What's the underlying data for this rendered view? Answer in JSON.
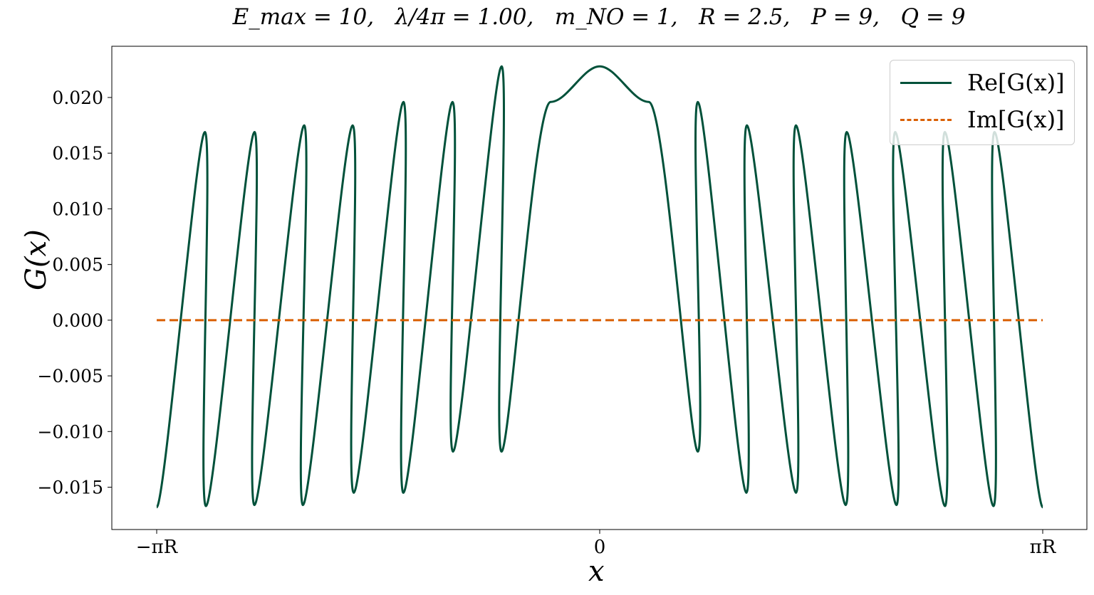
{
  "chart_data": {
    "type": "line",
    "title": "E_max = 10,   λ/4π = 1.00,   m_NO = 1,   R = 2.5,   P = 9,   Q = 9",
    "xlabel": "x",
    "ylabel": "G(x)",
    "xlim": [
      -7.854,
      7.854
    ],
    "ylim": [
      -0.0188,
      0.0246
    ],
    "x_ticks": [
      {
        "value": -7.854,
        "label": "−πR"
      },
      {
        "value": 0,
        "label": "0"
      },
      {
        "value": 7.854,
        "label": "πR"
      }
    ],
    "y_ticks": [
      {
        "value": 0.02,
        "label": "0.020"
      },
      {
        "value": 0.015,
        "label": "0.015"
      },
      {
        "value": 0.01,
        "label": "0.010"
      },
      {
        "value": 0.005,
        "label": "0.005"
      },
      {
        "value": 0.0,
        "label": "0.000"
      },
      {
        "value": -0.005,
        "label": "−0.005"
      },
      {
        "value": -0.01,
        "label": "−0.010"
      },
      {
        "value": -0.015,
        "label": "−0.015"
      }
    ],
    "grid": false,
    "legend_position": "top-right",
    "series": [
      {
        "name": "Re[G(x)]",
        "color": "#00513a",
        "style": "solid",
        "x": [
          -7.854,
          -7.0,
          -6.98,
          -6.12,
          -6.12,
          -5.24,
          -5.26,
          -4.38,
          -4.36,
          -3.48,
          -3.48,
          -2.61,
          -2.6,
          -1.74,
          -1.74,
          -0.87,
          0.0,
          0.87,
          1.74,
          1.74,
          2.6,
          2.61,
          3.48,
          3.48,
          4.36,
          4.38,
          5.26,
          5.24,
          6.12,
          6.12,
          6.98,
          7.0,
          7.854
        ],
        "y": [
          -0.0168,
          0.0169,
          -0.0167,
          0.0169,
          -0.0166,
          0.0175,
          -0.0166,
          0.0175,
          -0.0155,
          0.0196,
          -0.0155,
          0.0196,
          -0.0118,
          0.0228,
          -0.0118,
          0.0196,
          0.0228,
          0.0196,
          -0.0118,
          0.0196,
          -0.0155,
          0.0175,
          -0.0155,
          0.0175,
          -0.0166,
          0.0169,
          -0.0166,
          0.0169,
          -0.0167,
          0.0169,
          -0.0167,
          0.0169,
          -0.0168
        ]
      },
      {
        "name": "Im[G(x)]",
        "color": "#d95f02",
        "style": "dashed",
        "x": [
          -7.854,
          7.854
        ],
        "y": [
          0,
          0
        ]
      }
    ]
  }
}
